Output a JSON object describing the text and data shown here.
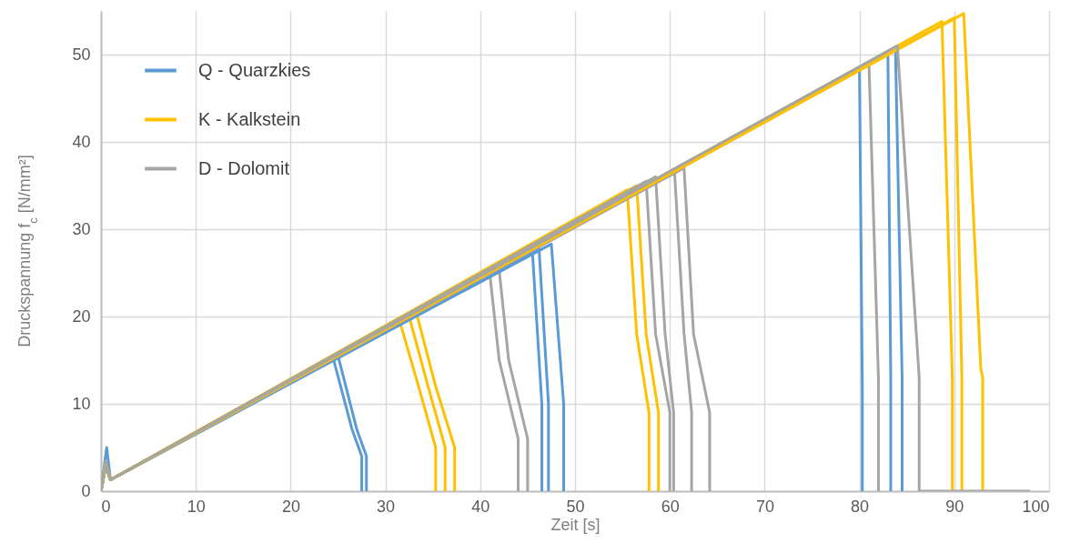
{
  "chart_data": {
    "type": "line",
    "xlabel": "Zeit [s]",
    "ylabel": "Druckspannung f$_{c}$ [N/mm²]",
    "xlim": [
      0,
      100
    ],
    "ylim": [
      0,
      55
    ],
    "xticks": [
      0,
      10,
      20,
      30,
      40,
      50,
      60,
      70,
      80,
      90,
      100
    ],
    "yticks": [
      0,
      10,
      20,
      30,
      40,
      50
    ],
    "grid": true,
    "legend": "top left",
    "line_style": "solid",
    "marker": "none",
    "series": [
      {
        "name": "Q - Quarzkies",
        "color": "#5b9bd5",
        "x": [
          0,
          0.6,
          1,
          24.5,
          26.5,
          27.5,
          27.5
        ],
        "values": [
          0,
          5,
          1.3,
          15.2,
          7,
          4,
          0
        ]
      },
      {
        "name": "K - Kalkstein",
        "color": "#ffc000",
        "x": [
          0,
          0.5,
          1,
          31.5,
          33.5,
          35.3,
          35.3
        ],
        "values": [
          0,
          3,
          1.3,
          19.5,
          12,
          5,
          0
        ]
      },
      {
        "name": "D - Dolomit",
        "color": "#a5a5a5",
        "x": [
          0,
          0.5,
          1,
          41,
          42,
          44,
          44
        ],
        "values": [
          0,
          3.5,
          1.3,
          25,
          15,
          6,
          0
        ]
      },
      {
        "color": "#5b9bd5",
        "x": [
          0,
          0.5,
          1,
          25,
          27,
          28,
          28
        ],
        "values": [
          0,
          3,
          1.3,
          15.5,
          7,
          4,
          0
        ]
      },
      {
        "color": "#ffc000",
        "x": [
          0,
          0.5,
          1,
          32.5,
          34.5,
          36.3,
          36.3
        ],
        "values": [
          0,
          3,
          1.3,
          20,
          12,
          5,
          0
        ]
      },
      {
        "color": "#ffc000",
        "x": [
          0,
          0.5,
          1,
          33.3,
          35.3,
          37.3,
          37.3
        ],
        "values": [
          0,
          3,
          1.3,
          20.3,
          12,
          5,
          0
        ]
      },
      {
        "color": "#a5a5a5",
        "x": [
          0,
          0.5,
          1,
          42,
          43,
          45,
          45
        ],
        "values": [
          0,
          3,
          1.3,
          25.3,
          15,
          6,
          0
        ]
      },
      {
        "color": "#5b9bd5",
        "x": [
          0,
          0.5,
          1,
          45.5,
          46.5,
          46.5
        ],
        "values": [
          0,
          3,
          1.3,
          27.5,
          10,
          0
        ]
      },
      {
        "color": "#5b9bd5",
        "x": [
          0,
          0.5,
          1,
          46.2,
          47.2,
          47.2
        ],
        "values": [
          0,
          3,
          1.3,
          27.8,
          10,
          0
        ]
      },
      {
        "color": "#5b9bd5",
        "x": [
          0,
          0.5,
          1,
          47.5,
          48.8,
          48.8
        ],
        "values": [
          0,
          3,
          1.3,
          28.3,
          10,
          0
        ]
      },
      {
        "color": "#ffc000",
        "x": [
          0,
          0.5,
          1,
          55.5,
          56.5,
          57.8,
          57.8
        ],
        "values": [
          0,
          3,
          1.3,
          34.5,
          18,
          9,
          0
        ]
      },
      {
        "color": "#ffc000",
        "x": [
          0,
          0.5,
          1,
          56.5,
          57.5,
          58.8,
          58.8
        ],
        "values": [
          0,
          3,
          1.3,
          35,
          18,
          9,
          0
        ]
      },
      {
        "color": "#a5a5a5",
        "x": [
          0,
          0.5,
          1,
          57.5,
          58.5,
          60,
          60
        ],
        "values": [
          0,
          3,
          1.3,
          35.5,
          18,
          9,
          0
        ]
      },
      {
        "color": "#a5a5a5",
        "x": [
          0,
          0.5,
          1,
          58.5,
          59.5,
          60.4,
          60.4
        ],
        "values": [
          0,
          3,
          1.3,
          36,
          18,
          9,
          0
        ]
      },
      {
        "color": "#a5a5a5",
        "x": [
          0,
          0.5,
          1,
          60.5,
          61.5,
          62.3,
          62.3
        ],
        "values": [
          0,
          3,
          1.3,
          36.5,
          18,
          9,
          0
        ]
      },
      {
        "color": "#a5a5a5",
        "x": [
          0,
          0.5,
          1,
          61.5,
          62.5,
          64.2,
          64.2
        ],
        "values": [
          0,
          3,
          1.3,
          37,
          18,
          9,
          0
        ]
      },
      {
        "color": "#5b9bd5",
        "x": [
          0,
          0.5,
          1,
          80,
          80.3,
          80.3
        ],
        "values": [
          0,
          3,
          1.3,
          48.5,
          12,
          0
        ]
      },
      {
        "color": "#a5a5a5",
        "x": [
          0,
          0.5,
          1,
          81,
          82,
          82
        ],
        "values": [
          0,
          3,
          1.3,
          49,
          13,
          0
        ]
      },
      {
        "color": "#5b9bd5",
        "x": [
          0,
          0.5,
          1,
          83,
          83.3,
          83.3
        ],
        "values": [
          0,
          3,
          1.3,
          50,
          13,
          0
        ]
      },
      {
        "color": "#5b9bd5",
        "x": [
          0,
          0.5,
          1,
          83.8,
          84.5,
          84.5
        ],
        "values": [
          0,
          3,
          1.3,
          50.5,
          13,
          0
        ]
      },
      {
        "color": "#ffc000",
        "x": [
          0,
          0.5,
          1,
          88.7,
          89.8,
          89.8
        ],
        "values": [
          0,
          3,
          1.3,
          53.8,
          13,
          0
        ]
      },
      {
        "color": "#ffc000",
        "x": [
          0,
          0.5,
          1,
          90,
          90.8,
          90.8
        ],
        "values": [
          0,
          3,
          1.3,
          54.2,
          13,
          0
        ]
      },
      {
        "color": "#ffc000",
        "x": [
          0,
          0.5,
          1,
          91,
          92.8,
          93,
          93
        ],
        "values": [
          0,
          3,
          1.3,
          54.7,
          14,
          13,
          0
        ]
      },
      {
        "color": "#a5a5a5",
        "x": [
          0,
          0.5,
          1,
          84,
          86.3,
          86.3,
          98
        ],
        "values": [
          0,
          3,
          1.3,
          51,
          13,
          0,
          0
        ]
      }
    ]
  }
}
